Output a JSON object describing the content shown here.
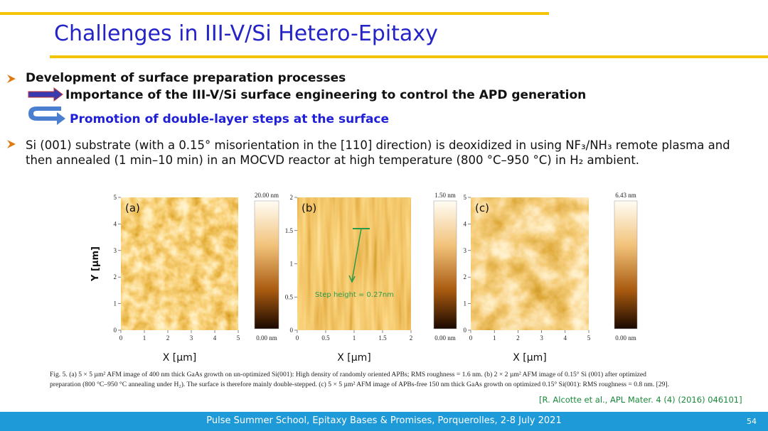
{
  "header": {
    "title": "Challenges in III-V/Si Hetero-Epitaxy"
  },
  "bullets": [
    {
      "heading": "Development of surface preparation processes",
      "sub": [
        "Importance of the III-V/Si surface engineering to control the APD generation",
        "Promotion of double-layer steps at the surface"
      ]
    },
    {
      "text": "Si (001) substrate (with a 0.15° misorientation in the [110] direction) is deoxidized in using NF₃/NH₃ remote plasma and then annealed (1 min–10 min) in an MOCVD reactor at high temperature (800 °C–950 °C) in H₂ ambient."
    }
  ],
  "figure": {
    "panels": [
      {
        "label": "(a)",
        "xticks": [
          "0",
          "1",
          "2",
          "3",
          "4",
          "5"
        ],
        "yticks": [
          "0",
          "1",
          "2",
          "3",
          "4",
          "5"
        ],
        "xlabel": "X [µm]",
        "ylabel": "Y [µm]",
        "scale_max": "20.00 nm",
        "scale_min": "0.00 nm"
      },
      {
        "label": "(b)",
        "xticks": [
          "0",
          "0.5",
          "1",
          "1.5",
          "2"
        ],
        "yticks": [
          "0",
          "0.5",
          "1",
          "1.5",
          "2"
        ],
        "xlabel": "X [µm]",
        "annotation": "Step height = 0.27nm",
        "scale_max": "1.50 nm",
        "scale_min": "0.00 nm"
      },
      {
        "label": "(c)",
        "xticks": [
          "0",
          "1",
          "2",
          "3",
          "4",
          "5"
        ],
        "yticks": [
          "0",
          "1",
          "2",
          "3",
          "4",
          "5"
        ],
        "xlabel": "X [µm]",
        "scale_max": "6.43 nm",
        "scale_min": "0.00 nm"
      }
    ],
    "caption": "Fig. 5. (a) 5 × 5 µm² AFM image of 400 nm thick GaAs growth on un-optimized Si(001): High density of randomly oriented APBs; RMS roughness = 1.6 nm. (b) 2 × 2 µm² AFM image of 0.15° Si (001) after optimized preparation (800 °C–950 °C annealing under H₂). The surface is therefore mainly double-stepped. (c) 5 × 5 µm² AFM image of APBs-free 150 nm thick GaAs growth on optimized 0.15° Si(001): RMS roughness = 0.8 nm. [29].",
    "reference": "[R. Alcotte et al., APL Mater. 4 (4) (2016) 046101]"
  },
  "footer": {
    "text": "Pulse Summer School, Epitaxy Bases & Promises, Porquerolles, 2-8 July 2021",
    "page": "54"
  }
}
